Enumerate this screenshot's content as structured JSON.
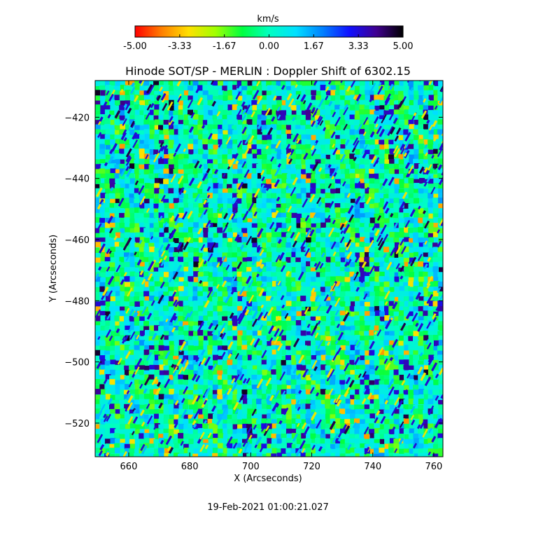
{
  "chart_data": {
    "type": "heatmap",
    "title": "Hinode SOT/SP - MERLIN : Doppler Shift of 6302.15",
    "xlabel": "X (Arcseconds)",
    "ylabel": "Y (Arcseconds)",
    "xlim": [
      649,
      763
    ],
    "ylim": [
      -531,
      -408
    ],
    "xticks": [
      660,
      680,
      700,
      720,
      740,
      760
    ],
    "yticks": [
      -420,
      -440,
      -460,
      -480,
      -500,
      -520
    ],
    "colorbar": {
      "label": "km/s",
      "vmin": -5.0,
      "vmax": 5.0,
      "ticks": [
        "-5.00",
        "-3.33",
        "-1.67",
        "0.00",
        "1.67",
        "3.33",
        "5.00"
      ],
      "colormap": [
        "#ff0000",
        "#ff8000",
        "#ffe000",
        "#a0ff00",
        "#00ff40",
        "#00ffc0",
        "#00e0ff",
        "#0080ff",
        "#1010ff",
        "#400090",
        "#000000"
      ]
    },
    "field_description": "granulation doppler velocity map, predominantly near 0 km/s (green/cyan) with scattered blue (+3 km/s) and orange/red (-3 km/s) speckles",
    "timestamp": "19-Feb-2021 01:00:21.027"
  }
}
